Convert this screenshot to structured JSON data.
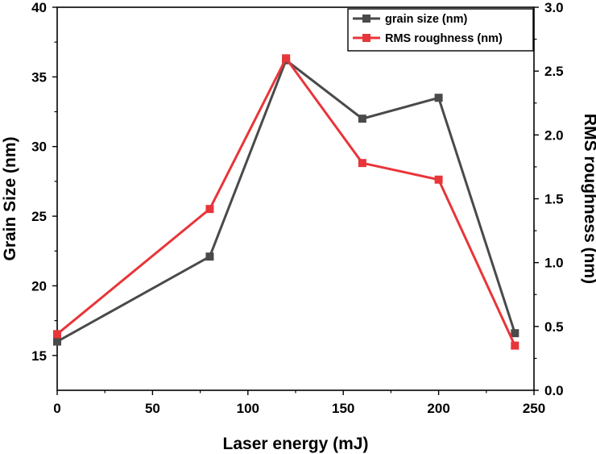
{
  "chart_data": {
    "type": "line",
    "x": [
      0,
      80,
      120,
      160,
      200,
      240
    ],
    "xlabel": "Laser energy (mJ)",
    "xlim": [
      0,
      250
    ],
    "xticks": [
      0,
      50,
      100,
      150,
      200,
      250
    ],
    "xtick_labels": [
      "0",
      "50",
      "100",
      "150",
      "200",
      "250"
    ],
    "ylabel_left": "Grain Size (nm)",
    "ylim_left": [
      12.5,
      40
    ],
    "yticks_left": [
      15,
      20,
      25,
      30,
      35,
      40
    ],
    "ytick_labels_left": [
      "15",
      "20",
      "25",
      "30",
      "35",
      "40"
    ],
    "ylabel_right": "RMS roughness (nm)",
    "ylim_right": [
      0,
      3
    ],
    "yticks_right": [
      0,
      0.5,
      1,
      1.5,
      2,
      2.5,
      3
    ],
    "ytick_labels_right": [
      "0.0",
      "0.5",
      "1.0",
      "1.5",
      "2.0",
      "2.5",
      "3.0"
    ],
    "grid": false,
    "legend_position": "top-right",
    "series": [
      {
        "name": "grain size (nm)",
        "axis": "left",
        "color": "#4a4a4a",
        "marker": "square",
        "values": [
          16,
          22.1,
          36.2,
          32,
          33.5,
          16.6
        ]
      },
      {
        "name": "RMS roughness (nm)",
        "axis": "right",
        "color": "#e8353a",
        "marker": "square",
        "values": [
          0.44,
          1.42,
          2.6,
          1.78,
          1.65,
          0.35
        ]
      }
    ]
  }
}
